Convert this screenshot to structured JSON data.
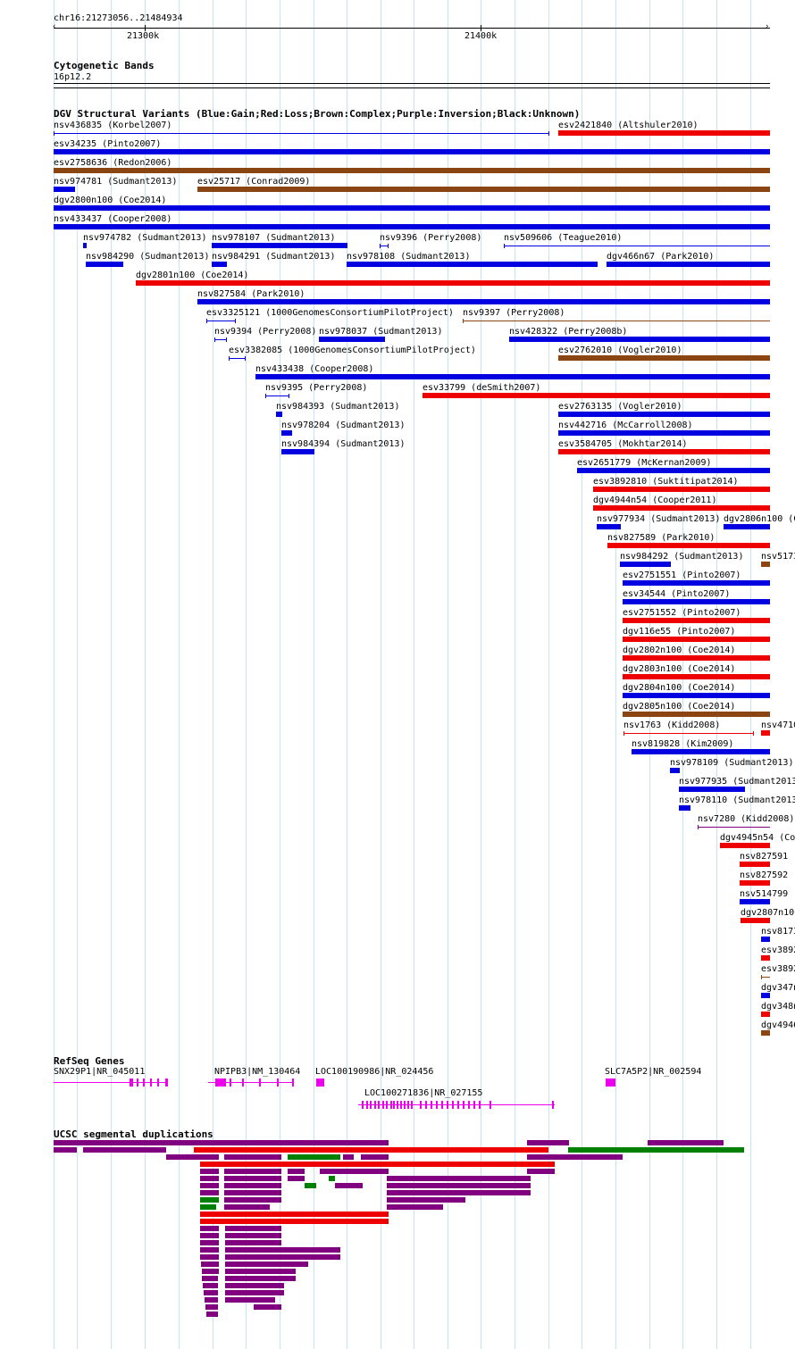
{
  "ruler": {
    "range": "chr16:21273056..21484934",
    "ticks": [
      {
        "label": "21300k"
      },
      {
        "label": "21400k"
      }
    ]
  },
  "cyto": {
    "title": "Cytogenetic Bands",
    "band": "16p12.2"
  },
  "dgv": {
    "title": "DGV Structural Variants (Blue:Gain;Red:Loss;Brown:Complex;Purple:Inversion;Black:Unknown)",
    "colors": {
      "gain": "#0000e0",
      "loss": "#ee0000",
      "complex": "#8b4513",
      "inversion": "#800080"
    },
    "items": [
      {
        "label": "nsv436835 (Korbel2007)",
        "type": "thin_blue"
      },
      {
        "label": "esv2421840 (Altshuler2010)",
        "type": "loss"
      },
      {
        "label": "esv34235 (Pinto2007)",
        "type": "gain"
      },
      {
        "label": "esv2758636 (Redon2006)",
        "type": "complex"
      },
      {
        "label": "nsv974781 (Sudmant2013)",
        "type": "gain"
      },
      {
        "label": "esv25717 (Conrad2009)",
        "type": "complex"
      },
      {
        "label": "dgv2800n100 (Coe2014)",
        "type": "gain"
      },
      {
        "label": "nsv433437 (Cooper2008)",
        "type": "gain"
      },
      {
        "label": "nsv974782 (Sudmant2013)",
        "type": "gain"
      },
      {
        "label": "nsv978107 (Sudmant2013)",
        "type": "gain"
      },
      {
        "label": "nsv9396 (Perry2008)",
        "type": "thin_blue"
      },
      {
        "label": "nsv509606 (Teague2010)",
        "type": "thin_blue"
      },
      {
        "label": "nsv984290 (Sudmant2013)",
        "type": "gain"
      },
      {
        "label": "nsv984291 (Sudmant2013)",
        "type": "gain"
      },
      {
        "label": "nsv978108 (Sudmant2013)",
        "type": "gain"
      },
      {
        "label": "dgv466n67 (Park2010)",
        "type": "gain"
      },
      {
        "label": "dgv2801n100 (Coe2014)",
        "type": "loss"
      },
      {
        "label": "nsv827584 (Park2010)",
        "type": "gain"
      },
      {
        "label": "esv3325121 (1000GenomesConsortiumPilotProject)",
        "type": "thin_blue"
      },
      {
        "label": "nsv9397 (Perry2008)",
        "type": "thin_brown"
      },
      {
        "label": "nsv9394 (Perry2008)",
        "type": "thin_blue"
      },
      {
        "label": "nsv978037 (Sudmant2013)",
        "type": "gain"
      },
      {
        "label": "nsv428322 (Perry2008b)",
        "type": "gain"
      },
      {
        "label": "esv3382085 (1000GenomesConsortiumPilotProject)",
        "type": "thin_blue"
      },
      {
        "label": "esv2762010 (Vogler2010)",
        "type": "complex"
      },
      {
        "label": "nsv433438 (Cooper2008)",
        "type": "gain"
      },
      {
        "label": "nsv9395 (Perry2008)",
        "type": "thin_blue"
      },
      {
        "label": "esv33799 (deSmith2007)",
        "type": "loss"
      },
      {
        "label": "nsv984393 (Sudmant2013)",
        "type": "gain"
      },
      {
        "label": "esv2763135 (Vogler2010)",
        "type": "gain"
      },
      {
        "label": "nsv978204 (Sudmant2013)",
        "type": "gain"
      },
      {
        "label": "nsv442716 (McCarroll2008)",
        "type": "gain"
      },
      {
        "label": "nsv984394 (Sudmant2013)",
        "type": "gain"
      },
      {
        "label": "esv3584705 (Mokhtar2014)",
        "type": "loss"
      },
      {
        "label": "esv2651779 (McKernan2009)",
        "type": "gain"
      },
      {
        "label": "esv3892810 (Suktitipat2014)",
        "type": "loss"
      },
      {
        "label": "dgv4944n54 (Cooper2011)",
        "type": "loss"
      },
      {
        "label": "nsv977934 (Sudmant2013)",
        "type": "gain"
      },
      {
        "label": "dgv2806n100 (C",
        "type": "gain"
      },
      {
        "label": "nsv827589 (Park2010)",
        "type": "loss"
      },
      {
        "label": "nsv984292 (Sudmant2013)",
        "type": "gain"
      },
      {
        "label": "nsv5173",
        "type": "complex"
      },
      {
        "label": "esv2751551 (Pinto2007)",
        "type": "gain"
      },
      {
        "label": "esv34544 (Pinto2007)",
        "type": "gain"
      },
      {
        "label": "esv2751552 (Pinto2007)",
        "type": "loss"
      },
      {
        "label": "dgv116e55 (Pinto2007)",
        "type": "loss"
      },
      {
        "label": "dgv2802n100 (Coe2014)",
        "type": "loss"
      },
      {
        "label": "dgv2803n100 (Coe2014)",
        "type": "loss"
      },
      {
        "label": "dgv2804n100 (Coe2014)",
        "type": "gain"
      },
      {
        "label": "dgv2805n100 (Coe2014)",
        "type": "complex"
      },
      {
        "label": "nsv1763 (Kidd2008)",
        "type": "thin_red"
      },
      {
        "label": "nsv4710",
        "type": "loss"
      },
      {
        "label": "nsv819828 (Kim2009)",
        "type": "gain"
      },
      {
        "label": "nsv978109 (Sudmant2013)",
        "type": "gain"
      },
      {
        "label": "nsv977935 (Sudmant2013",
        "type": "gain"
      },
      {
        "label": "nsv978110 (Sudmant2013",
        "type": "gain"
      },
      {
        "label": "nsv7280 (Kidd2008)",
        "type": "thin_purple"
      },
      {
        "label": "dgv4945n54 (Co",
        "type": "loss"
      },
      {
        "label": "nsv827591",
        "type": "loss"
      },
      {
        "label": "nsv827592",
        "type": "loss"
      },
      {
        "label": "nsv514799",
        "type": "gain"
      },
      {
        "label": "dgv2807n100",
        "type": "loss"
      },
      {
        "label": "nsv8173",
        "type": "gain"
      },
      {
        "label": "esv3892",
        "type": "loss"
      },
      {
        "label": "esv3892",
        "type": "thin_brown"
      },
      {
        "label": "dgv347n",
        "type": "gain"
      },
      {
        "label": "dgv348n",
        "type": "loss"
      },
      {
        "label": "dgv4946",
        "type": "complex"
      }
    ]
  },
  "refseq": {
    "title": "RefSeq Genes",
    "color": "#ee00ee",
    "genes": [
      {
        "label": "SNX29P1|NR_045011"
      },
      {
        "label": "NPIPB3|NM_130464"
      },
      {
        "label": "LOC100190986|NR_024456"
      },
      {
        "label": "SLC7A5P2|NR_002594"
      },
      {
        "label": "LOC100271836|NR_027155"
      }
    ]
  },
  "segdup": {
    "title": "UCSC segmental duplications",
    "colors": {
      "p": "#800080",
      "r": "#ee0000",
      "g": "#008000"
    }
  }
}
